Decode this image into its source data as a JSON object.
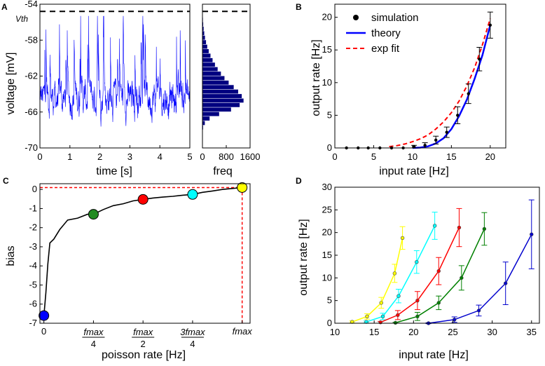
{
  "chart_data": [
    {
      "panel": "A",
      "type": "line",
      "title": "",
      "xlabel": "time [s]",
      "ylabel": "voltage [mV]",
      "xlim": [
        0,
        5
      ],
      "ylim": [
        -70,
        -54
      ],
      "xticks": [
        "0",
        "1",
        "2",
        "3",
        "4",
        "5"
      ],
      "yticks": [
        "-54",
        "-58",
        "-62",
        "-66",
        "-70"
      ],
      "threshold": {
        "label": "Vth",
        "value": -54.8
      },
      "series": [
        {
          "name": "membrane voltage",
          "color": "#0000ff",
          "description_values": {
            "mean": -64.5,
            "min": -68.7,
            "max": -55.3
          }
        }
      ],
      "series_color": "#0000ff"
    },
    {
      "panel": "A-hist",
      "type": "bar",
      "orientation": "horizontal",
      "xlabel": "freq",
      "xlim": [
        0,
        1600
      ],
      "xticks": [
        "0",
        "800",
        "1600"
      ],
      "bins_voltage": [
        -68.5,
        -68,
        -67.5,
        -67,
        -66.5,
        -66,
        -65.5,
        -65,
        -64.5,
        -64,
        -63.5,
        -63,
        -62.5,
        -62,
        -61.5,
        -61,
        -60.5,
        -60,
        -59.5,
        -59,
        -58.5,
        -58,
        -57.5,
        -57,
        -56.5,
        -56
      ],
      "counts": [
        5,
        20,
        80,
        240,
        560,
        960,
        1250,
        1380,
        1320,
        1200,
        1050,
        880,
        740,
        620,
        510,
        420,
        340,
        270,
        210,
        160,
        120,
        85,
        60,
        40,
        25,
        15
      ],
      "color": "#000080"
    },
    {
      "panel": "B",
      "type": "scatter",
      "xlabel": "input rate [Hz]",
      "ylabel": "output rate [Hz]",
      "xlim": [
        0,
        22
      ],
      "ylim": [
        0,
        22
      ],
      "xticks": [
        "0",
        "5",
        "10",
        "15",
        "20"
      ],
      "yticks": [
        "0",
        "5",
        "10",
        "15",
        "20"
      ],
      "legend": {
        "position": "top-left",
        "entries": [
          "simulation",
          "theory",
          "exp fit"
        ]
      },
      "simulation": {
        "x": [
          1.5,
          3,
          4.3,
          5.8,
          7.3,
          8.8,
          10.2,
          11.6,
          13,
          14.4,
          15.8,
          17.2,
          18.6,
          20
        ],
        "y": [
          0,
          0,
          0,
          0,
          0,
          0,
          0.2,
          0.4,
          1.2,
          2.4,
          5.0,
          8.3,
          13.6,
          18.8
        ],
        "err": [
          0,
          0,
          0,
          0,
          0,
          0,
          0.2,
          0.4,
          0.6,
          0.8,
          1.3,
          1.5,
          1.8,
          2.0
        ]
      },
      "theory": {
        "x": [
          10,
          11,
          12,
          13,
          14,
          15,
          16,
          17,
          18,
          19,
          20
        ],
        "y": [
          0,
          0.05,
          0.25,
          0.7,
          1.5,
          2.9,
          4.9,
          7.4,
          10.6,
          14.2,
          18.8
        ]
      },
      "exp_fit": {
        "x": [
          7,
          8,
          9,
          10,
          11,
          12,
          13,
          14,
          15,
          16,
          17,
          18,
          19,
          20
        ],
        "y": [
          0.2,
          0.35,
          0.6,
          0.95,
          1.4,
          2.0,
          2.9,
          4.0,
          5.4,
          7.2,
          9.5,
          12.3,
          15.8,
          19.8
        ]
      },
      "colors": {
        "simulation": "#000000",
        "theory": "#0000ff",
        "exp_fit": "#ff0000"
      }
    },
    {
      "panel": "C",
      "type": "line",
      "xlabel": "poisson rate [Hz]",
      "ylabel": "bias",
      "xlim": [
        0,
        1
      ],
      "ylim": [
        -7,
        0.3
      ],
      "yticks": [
        "0",
        "-1",
        "-2",
        "-3",
        "-4",
        "-5",
        "-6",
        "-7"
      ],
      "xticks": [
        {
          "num": "",
          "den": "",
          "plain": "0"
        },
        {
          "num": "fmax",
          "den": "4",
          "plain": ""
        },
        {
          "num": "fmax",
          "den": "2",
          "plain": ""
        },
        {
          "num": "3fmax",
          "den": "4",
          "plain": ""
        },
        {
          "num": "",
          "den": "",
          "plain": "fmax"
        }
      ],
      "x": [
        0,
        0.01,
        0.02,
        0.03,
        0.05,
        0.08,
        0.12,
        0.17,
        0.22,
        0.25,
        0.3,
        0.35,
        0.4,
        0.45,
        0.5,
        0.55,
        0.6,
        0.65,
        0.7,
        0.75,
        0.8,
        0.85,
        0.9,
        0.95,
        1.0
      ],
      "y": [
        -6.6,
        -5.4,
        -3.9,
        -2.8,
        -2.6,
        -2.1,
        -1.6,
        -1.5,
        -1.3,
        -1.3,
        -1.05,
        -0.85,
        -0.75,
        -0.6,
        -0.52,
        -0.45,
        -0.4,
        -0.36,
        -0.3,
        -0.26,
        -0.15,
        -0.08,
        0.0,
        0.05,
        0.1
      ],
      "reference": {
        "y": 0.1,
        "x": 1.0,
        "color": "#ff0000"
      },
      "markers": [
        {
          "x": 0.0,
          "y": -6.6,
          "color": "#0000ff"
        },
        {
          "x": 0.25,
          "y": -1.3,
          "color": "#228b22"
        },
        {
          "x": 0.5,
          "y": -0.52,
          "color": "#ff0000"
        },
        {
          "x": 0.75,
          "y": -0.26,
          "color": "#00ffff"
        },
        {
          "x": 1.0,
          "y": 0.1,
          "color": "#ffff00"
        }
      ]
    },
    {
      "panel": "D",
      "type": "line",
      "xlabel": "input rate [Hz]",
      "ylabel": "output rate [Hz]",
      "xlim": [
        10,
        36
      ],
      "ylim": [
        0,
        30
      ],
      "xticks": [
        "10",
        "15",
        "20",
        "25",
        "30",
        "35"
      ],
      "yticks": [
        "0",
        "5",
        "10",
        "15",
        "20",
        "25",
        "30"
      ],
      "series": [
        {
          "name": "yellow",
          "color": "#ffff00",
          "x": [
            12.2,
            14.1,
            15.9,
            17.6,
            18.6
          ],
          "y": [
            0.3,
            1.5,
            4.5,
            11,
            18.8
          ],
          "err": [
            0.2,
            0.6,
            1.2,
            2.0,
            2.5
          ]
        },
        {
          "name": "cyan",
          "color": "#00ffff",
          "x": [
            14,
            16.1,
            18.1,
            20.4,
            22.7
          ],
          "y": [
            0.3,
            1.5,
            6,
            13.5,
            21.5
          ],
          "err": [
            0.2,
            0.7,
            1.5,
            2.5,
            3.0
          ]
        },
        {
          "name": "red",
          "color": "#ff0000",
          "x": [
            15.8,
            18,
            20.5,
            23.2,
            25.8
          ],
          "y": [
            0.2,
            1.8,
            5,
            11.5,
            21.1
          ],
          "err": [
            0.2,
            1.0,
            2.0,
            3.0,
            4.2
          ]
        },
        {
          "name": "green",
          "color": "#008000",
          "x": [
            17.7,
            20.5,
            23.2,
            26.1,
            29
          ],
          "y": [
            0.1,
            1.5,
            4.5,
            10,
            20.8
          ],
          "err": [
            0.1,
            0.9,
            1.5,
            2.7,
            3.6
          ]
        },
        {
          "name": "blue",
          "color": "#0000cd",
          "x": [
            21.9,
            25.2,
            28.3,
            31.7,
            35
          ],
          "y": [
            0,
            0.8,
            2.8,
            8.8,
            19.6
          ],
          "err": [
            0.1,
            0.6,
            1.2,
            4.7,
            7.6
          ]
        }
      ]
    }
  ],
  "panel_labels": [
    "A",
    "B",
    "C",
    "D"
  ]
}
